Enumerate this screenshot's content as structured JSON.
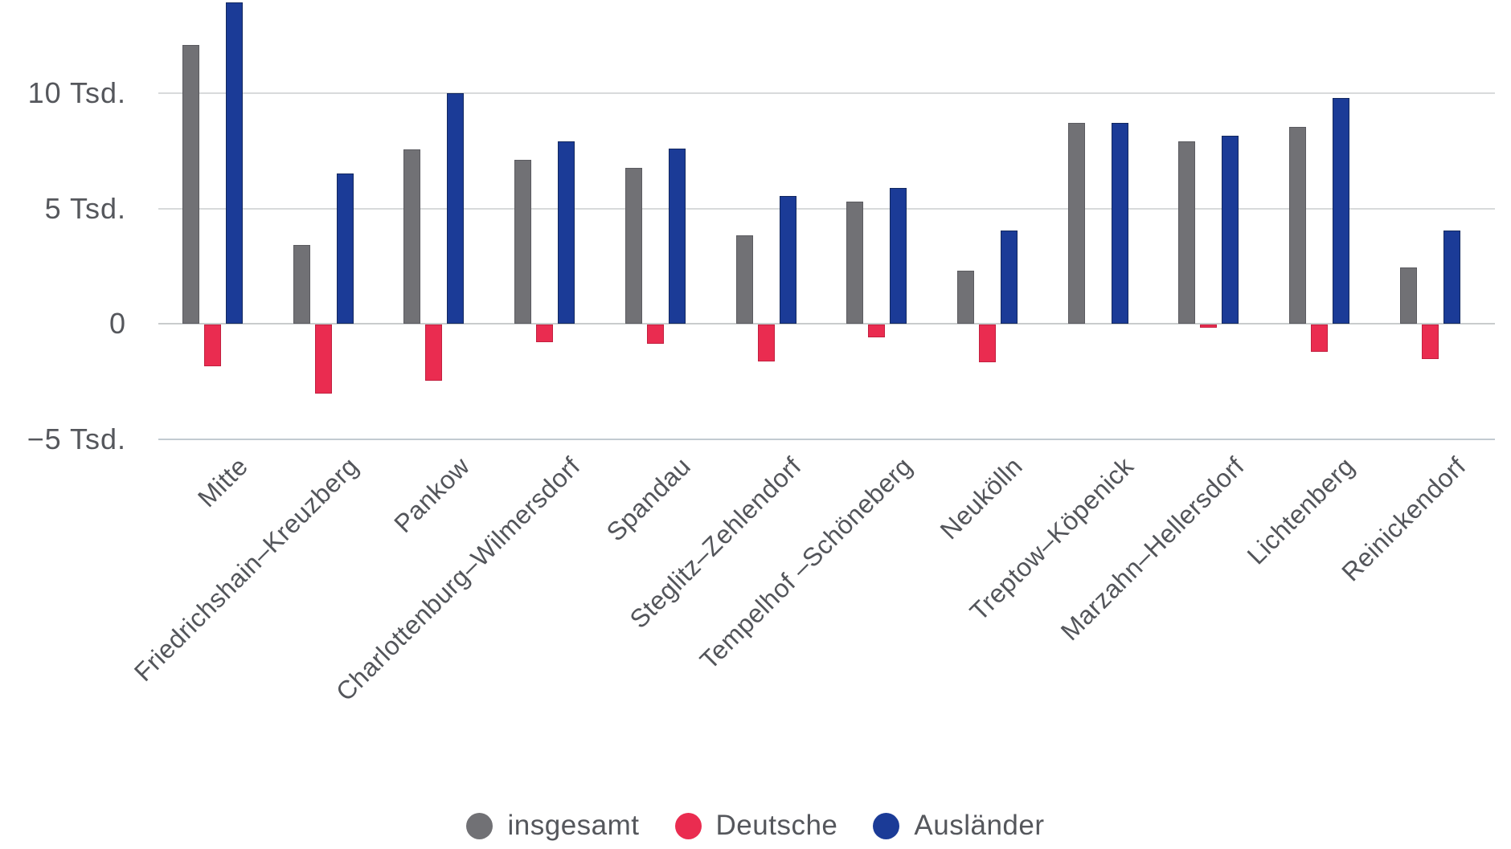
{
  "chart_data": {
    "type": "bar",
    "title": "",
    "unit": "Tsd.",
    "categories": [
      "Mitte",
      "Friedrichshain–Kreuzberg",
      "Pankow",
      "Charlottenburg–Wilmersdorf",
      "Spandau",
      "Steglitz–Zehlendorf",
      "Tempelhof –Schöneberg",
      "Neukölln",
      "Treptow–Köpenick",
      "Marzahn–Hellersdorf",
      "Lichtenberg",
      "Reinickendorf"
    ],
    "series": [
      {
        "name": "insgesamt",
        "color": "#717175",
        "border": "#5b5b60",
        "values": [
          12.1,
          3.4,
          7.55,
          7.1,
          6.75,
          3.85,
          5.3,
          2.3,
          8.7,
          7.9,
          8.55,
          2.45
        ]
      },
      {
        "name": "Deutsche",
        "color": "#ea2c50",
        "border": "#c2203f",
        "values": [
          -1.8,
          -3.0,
          -2.45,
          -0.75,
          -0.85,
          -1.6,
          -0.55,
          -1.65,
          0,
          -0.15,
          -1.2,
          -1.5
        ]
      },
      {
        "name": "Ausländer",
        "color": "#1b3b97",
        "border": "#12285f",
        "values": [
          13.95,
          6.5,
          10.0,
          7.9,
          7.6,
          5.55,
          5.9,
          4.05,
          8.7,
          8.15,
          9.8,
          4.05
        ]
      }
    ],
    "y_ticks": [
      {
        "label": "10 Tsd.",
        "value": 10
      },
      {
        "label": "5 Tsd.",
        "value": 5
      },
      {
        "label": "0",
        "value": 0
      },
      {
        "label": "−5 Tsd.",
        "value": -5
      }
    ],
    "ylim": [
      -5,
      14.1
    ],
    "grid": true,
    "legend_position": "bottom"
  }
}
